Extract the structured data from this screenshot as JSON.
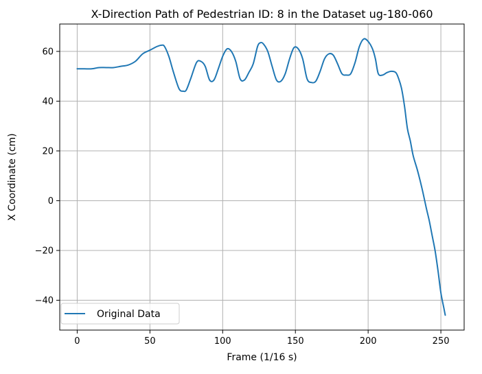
{
  "chart_data": {
    "type": "line",
    "title": "X-Direction Path of Pedestrian ID: 8 in the Dataset ug-180-060",
    "xlabel": "Frame (1/16 s)",
    "ylabel": "X Coordinate (cm)",
    "xlim": [
      -12,
      266
    ],
    "ylim": [
      -52,
      71
    ],
    "xticks": [
      0,
      50,
      100,
      150,
      200,
      250
    ],
    "yticks": [
      -40,
      -20,
      0,
      20,
      40,
      60
    ],
    "xtick_labels": [
      "0",
      "50",
      "100",
      "150",
      "200",
      "250"
    ],
    "ytick_labels": [
      "−40",
      "−20",
      "0",
      "20",
      "40",
      "60"
    ],
    "grid": true,
    "legend_position": "lower-left",
    "series": [
      {
        "name": "Original Data",
        "color": "#1f77b4",
        "x": [
          0,
          5,
          10,
          15,
          20,
          25,
          30,
          35,
          40,
          45,
          50,
          55,
          58,
          60,
          63,
          66,
          70,
          73,
          75,
          78,
          82,
          85,
          88,
          91,
          94,
          97,
          100,
          103,
          106,
          109,
          112,
          115,
          118,
          121,
          124,
          126,
          128,
          131,
          134,
          137,
          140,
          143,
          146,
          149,
          152,
          155,
          158,
          161,
          164,
          167,
          170,
          173,
          176,
          179,
          182,
          185,
          188,
          191,
          194,
          197,
          200,
          203,
          205,
          207,
          210,
          213,
          216,
          219,
          221,
          223,
          225,
          227,
          229,
          231,
          234,
          237,
          240,
          242,
          244,
          246,
          248,
          250,
          252,
          253
        ],
        "y": [
          53,
          53,
          53,
          53.5,
          53.5,
          53.5,
          54,
          54.5,
          56,
          59,
          60.5,
          62,
          62.5,
          62,
          58,
          52,
          45,
          44,
          44.5,
          49,
          55.5,
          56,
          54,
          48.5,
          48.5,
          53,
          58,
          61,
          60,
          56,
          49,
          48.5,
          51.5,
          55,
          62,
          63.5,
          63,
          60,
          54,
          48.5,
          48,
          51,
          57,
          61.5,
          61,
          57,
          49,
          47.5,
          48,
          52,
          57,
          59,
          58.5,
          55,
          51,
          50.5,
          51,
          55.5,
          62,
          65,
          64,
          61,
          57,
          51,
          50.5,
          51.5,
          52,
          51.5,
          49,
          45,
          38,
          29,
          24,
          18,
          12,
          5,
          -3,
          -8,
          -14,
          -20,
          -28,
          -37,
          -43,
          -46
        ]
      }
    ]
  }
}
